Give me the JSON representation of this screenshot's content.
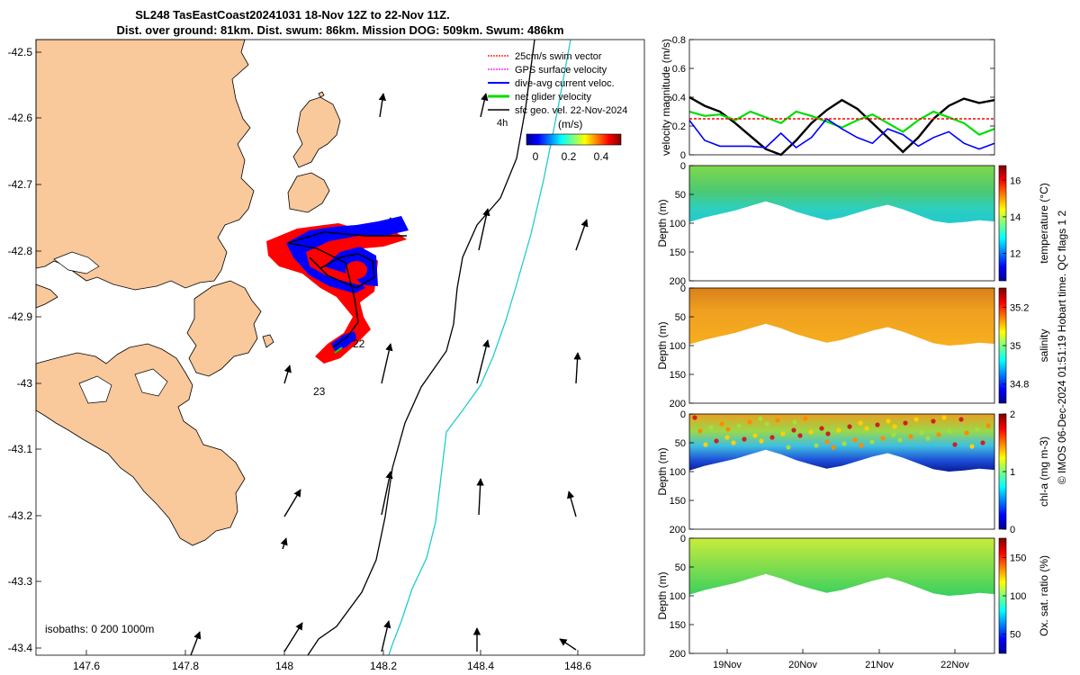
{
  "title": {
    "line1": "SL248 TasEastCoast20241031 18-Nov 12Z to 22-Nov 11Z.",
    "line2": "Dist. over ground: 81km. Dist. swum: 86km. Mission DOG: 509km. Swum: 486km"
  },
  "map": {
    "y_ticks": [
      "-42.5",
      "-42.6",
      "-42.7",
      "-42.8",
      "-42.9",
      "-43",
      "-43.1",
      "-43.2",
      "-43.3",
      "-43.4"
    ],
    "x_ticks": [
      "147.6",
      "147.8",
      "148",
      "148.2",
      "148.4",
      "148.6"
    ],
    "legend": [
      {
        "label": "25cm/s swim vector",
        "color": "#ff0000"
      },
      {
        "label": "GPS surface velocity",
        "color": "#ff00ff"
      },
      {
        "label": "dive-avg current veloc.",
        "color": "#0000ff"
      },
      {
        "label": "net glider velocity",
        "color": "#00cc00"
      },
      {
        "label": "sfc geo. vel. 22-Nov-2024",
        "color": "#000000"
      }
    ],
    "scale_label": "4h",
    "colorbar_unit": "(m/s)",
    "colorbar_ticks": [
      "0",
      "0.2",
      "0.4"
    ],
    "day_labels": [
      "22",
      "23"
    ],
    "isobaths_label": "isobaths: 0   200  1000m",
    "land_color": "#f9c89b"
  },
  "chart_data": [
    {
      "type": "line",
      "title": "",
      "ylabel": "velocity magnitude (m/s)",
      "y_ticks": [
        "0",
        "0.2",
        "0.4",
        "0.6",
        "0.8"
      ],
      "ylim": [
        0,
        0.8
      ],
      "x_domain": [
        "18-Nov 12Z",
        "22-Nov 11Z"
      ],
      "series": [
        {
          "name": "sfc geo. vel.",
          "color": "#000000",
          "values": [
            0.4,
            0.34,
            0.3,
            0.22,
            0.13,
            0.04,
            0.0,
            0.1,
            0.22,
            0.31,
            0.38,
            0.32,
            0.22,
            0.12,
            0.02,
            0.12,
            0.25,
            0.34,
            0.39,
            0.36,
            0.38
          ]
        },
        {
          "name": "net glider velocity",
          "color": "#00dd00",
          "values": [
            0.3,
            0.27,
            0.28,
            0.24,
            0.3,
            0.26,
            0.22,
            0.3,
            0.27,
            0.23,
            0.19,
            0.24,
            0.28,
            0.22,
            0.16,
            0.24,
            0.3,
            0.26,
            0.22,
            0.14,
            0.18
          ]
        },
        {
          "name": "dive-avg current veloc.",
          "color": "#0000ff",
          "values": [
            0.24,
            0.1,
            0.06,
            0.06,
            0.06,
            0.05,
            0.15,
            0.05,
            0.12,
            0.25,
            0.18,
            0.12,
            0.08,
            0.18,
            0.14,
            0.06,
            0.12,
            0.16,
            0.08,
            0.04,
            0.08
          ]
        },
        {
          "name": "25cm/s swim vector",
          "color": "#ff0000",
          "values": [
            0.25,
            0.25,
            0.25,
            0.25,
            0.25,
            0.25,
            0.25,
            0.25,
            0.25,
            0.25,
            0.25,
            0.25,
            0.25,
            0.25,
            0.25,
            0.25,
            0.25,
            0.25,
            0.25,
            0.25,
            0.25
          ]
        }
      ]
    },
    {
      "type": "heatmap",
      "ylabel": "Depth (m)",
      "y_ticks": [
        "0",
        "50",
        "100",
        "150",
        "200"
      ],
      "ylim": [
        200,
        0
      ],
      "colorbar_label": "temperature (°C)",
      "colorbar_ticks": [
        "12",
        "14",
        "16"
      ],
      "clim": [
        10.5,
        16.8
      ]
    },
    {
      "type": "heatmap",
      "ylabel": "Depth (m)",
      "y_ticks": [
        "0",
        "50",
        "100",
        "150",
        "200"
      ],
      "ylim": [
        200,
        0
      ],
      "colorbar_label": "salinity",
      "colorbar_ticks": [
        "34.8",
        "35",
        "35.2"
      ],
      "clim": [
        34.7,
        35.3
      ]
    },
    {
      "type": "heatmap",
      "ylabel": "Depth (m)",
      "y_ticks": [
        "0",
        "50",
        "100",
        "150",
        "200"
      ],
      "ylim": [
        200,
        0
      ],
      "colorbar_label": "chl-a (mg m-3)",
      "colorbar_ticks": [
        "0",
        "1",
        "2"
      ],
      "clim": [
        0,
        2
      ]
    },
    {
      "type": "heatmap",
      "ylabel": "Depth (m)",
      "y_ticks": [
        "0",
        "50",
        "100",
        "150",
        "200"
      ],
      "ylim": [
        200,
        0
      ],
      "colorbar_label": "Ox. sat. ratio (%)",
      "colorbar_ticks": [
        "50",
        "100",
        "150"
      ],
      "clim": [
        25,
        175
      ]
    }
  ],
  "time_axis": {
    "ticks": [
      "19Nov",
      "20Nov",
      "21Nov",
      "22Nov"
    ]
  },
  "footer": "© IMOS 06-Dec-2024 01:51:19 Hobart time. QC flags 1  2"
}
